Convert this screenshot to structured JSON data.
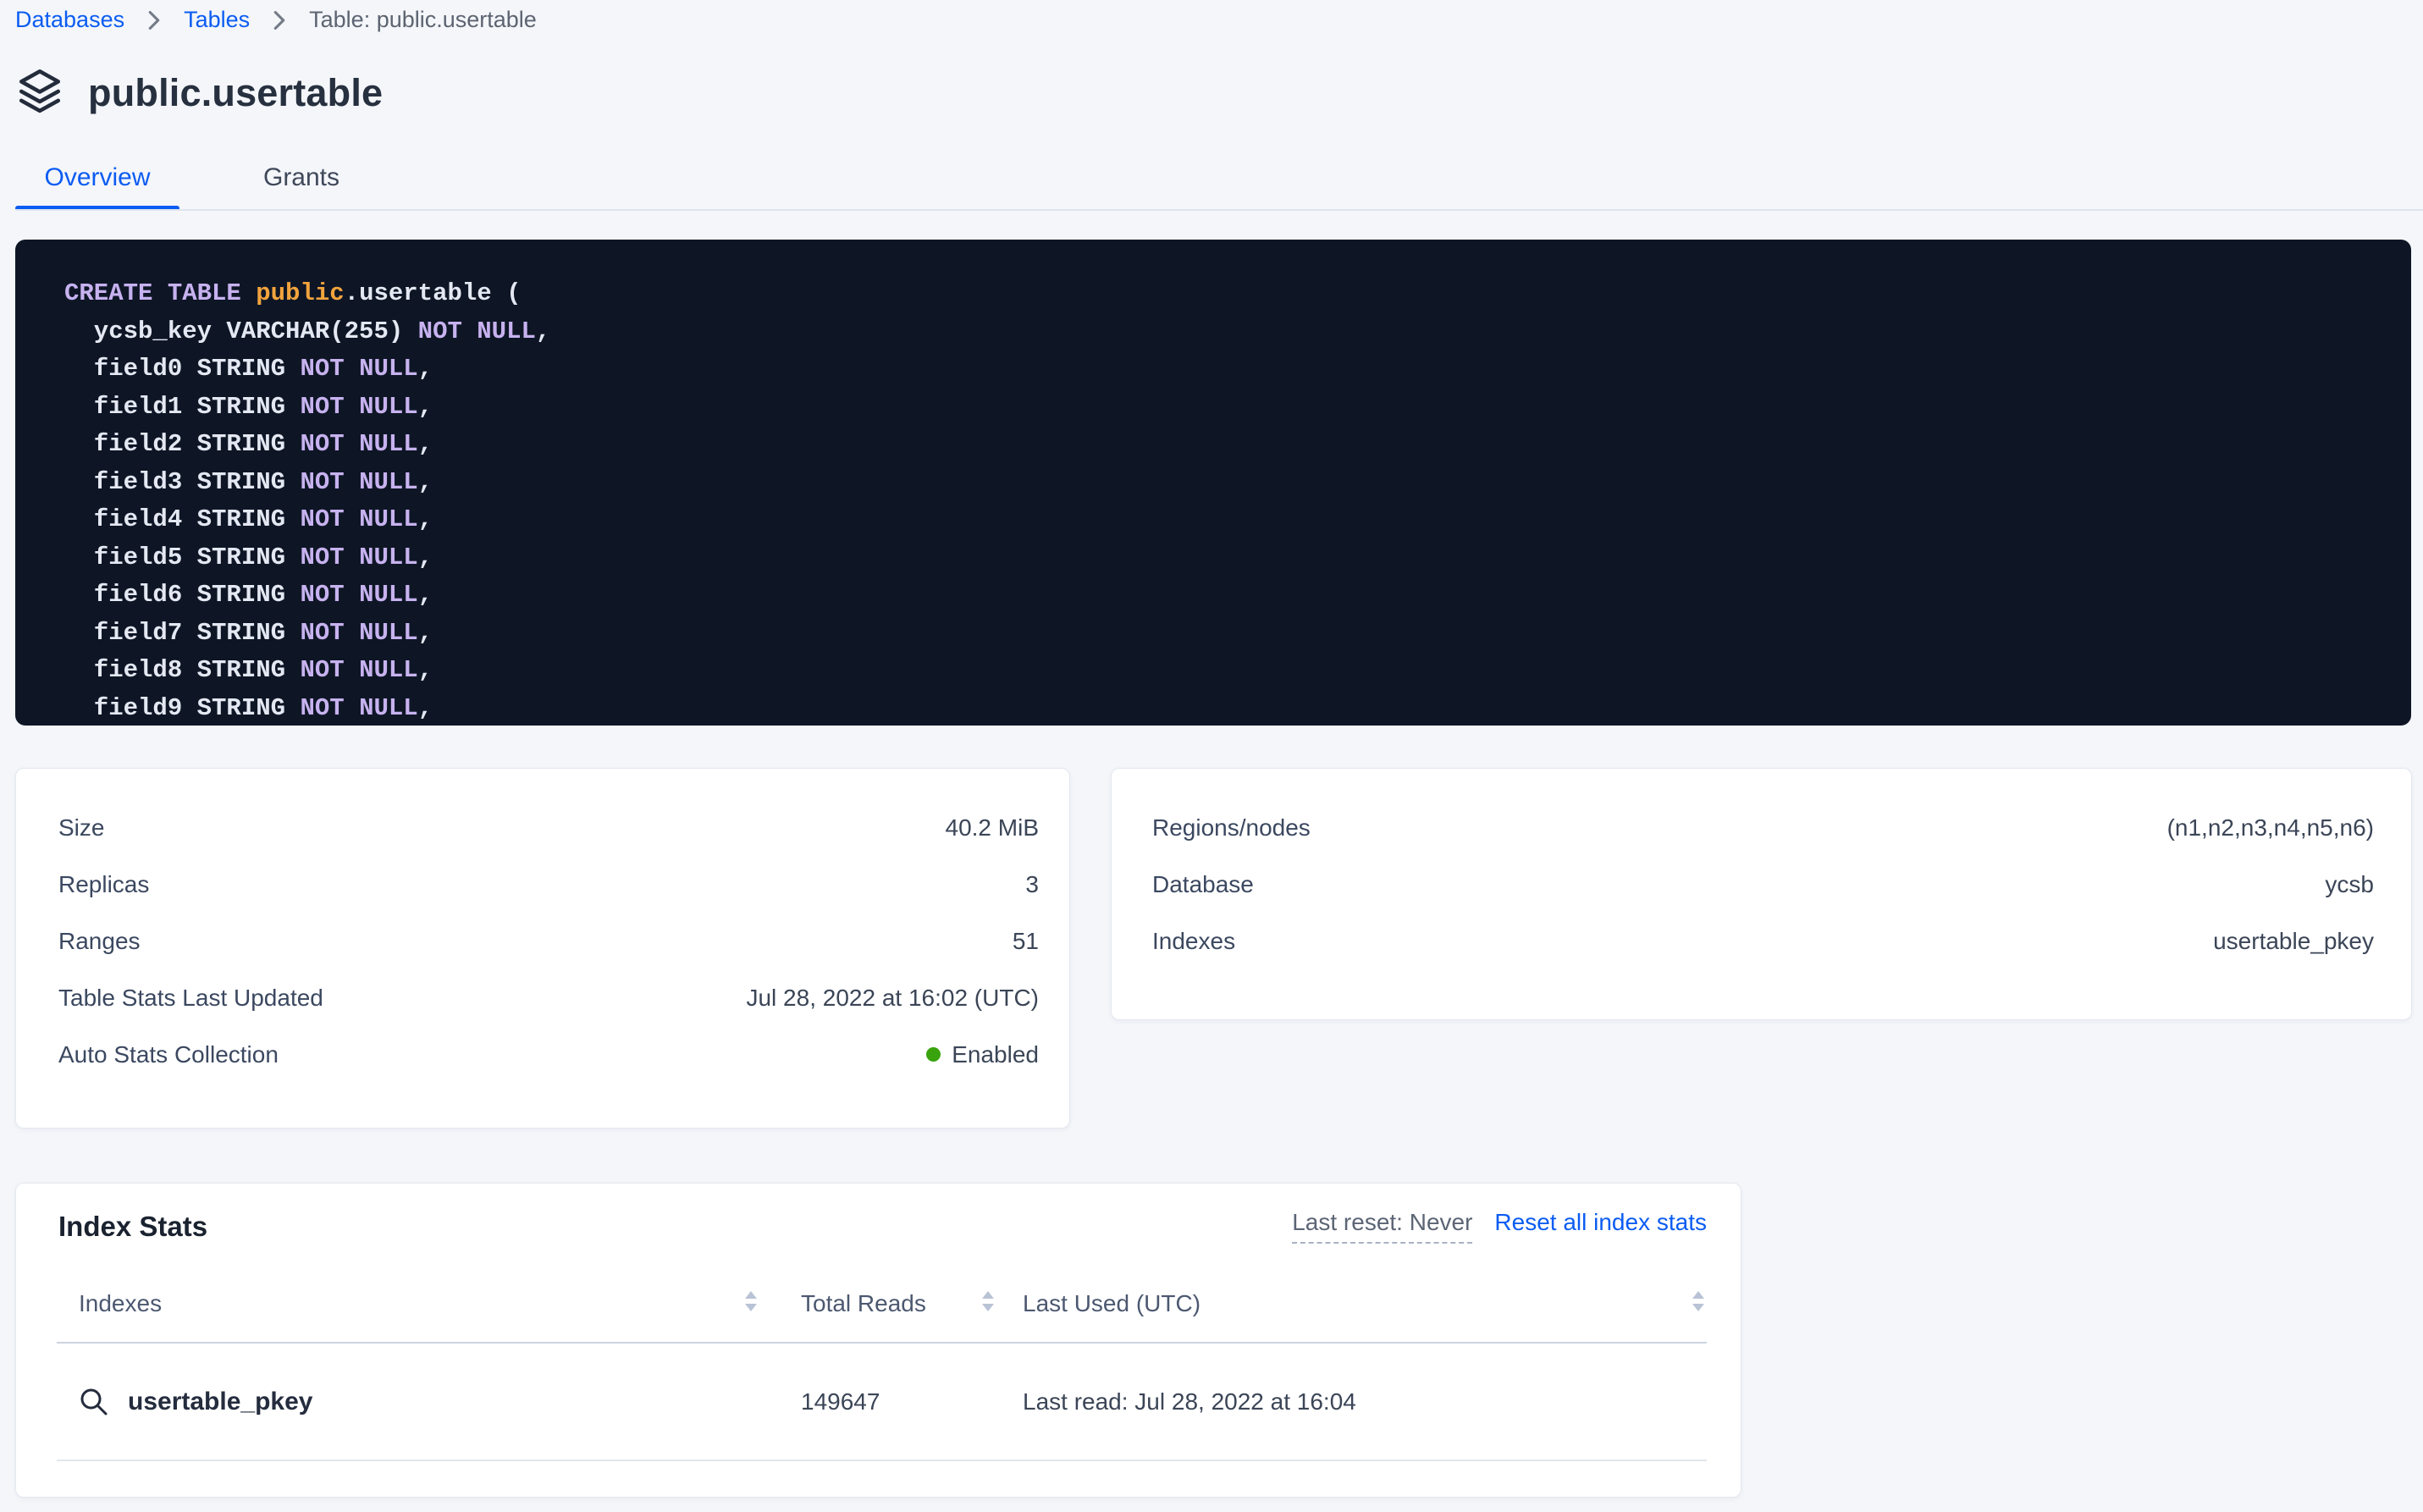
{
  "breadcrumb": {
    "items": [
      {
        "label": "Databases",
        "type": "link"
      },
      {
        "label": "Tables",
        "type": "link"
      },
      {
        "label": "Table: public.usertable",
        "type": "current"
      }
    ]
  },
  "header": {
    "title": "public.usertable",
    "icon": "stack-icon"
  },
  "tabs": [
    {
      "label": "Overview",
      "active": true
    },
    {
      "label": "Grants",
      "active": false
    }
  ],
  "sql": {
    "lines": [
      [
        {
          "t": "kw",
          "v": "CREATE TABLE "
        },
        {
          "t": "db",
          "v": "public"
        },
        {
          "t": "pl",
          "v": ".usertable ("
        }
      ],
      [
        {
          "t": "pl",
          "v": "  ycsb_key VARCHAR(255) "
        },
        {
          "t": "kw",
          "v": "NOT NULL"
        },
        {
          "t": "pl",
          "v": ","
        }
      ],
      [
        {
          "t": "pl",
          "v": "  field0 STRING "
        },
        {
          "t": "kw",
          "v": "NOT NULL"
        },
        {
          "t": "pl",
          "v": ","
        }
      ],
      [
        {
          "t": "pl",
          "v": "  field1 STRING "
        },
        {
          "t": "kw",
          "v": "NOT NULL"
        },
        {
          "t": "pl",
          "v": ","
        }
      ],
      [
        {
          "t": "pl",
          "v": "  field2 STRING "
        },
        {
          "t": "kw",
          "v": "NOT NULL"
        },
        {
          "t": "pl",
          "v": ","
        }
      ],
      [
        {
          "t": "pl",
          "v": "  field3 STRING "
        },
        {
          "t": "kw",
          "v": "NOT NULL"
        },
        {
          "t": "pl",
          "v": ","
        }
      ],
      [
        {
          "t": "pl",
          "v": "  field4 STRING "
        },
        {
          "t": "kw",
          "v": "NOT NULL"
        },
        {
          "t": "pl",
          "v": ","
        }
      ],
      [
        {
          "t": "pl",
          "v": "  field5 STRING "
        },
        {
          "t": "kw",
          "v": "NOT NULL"
        },
        {
          "t": "pl",
          "v": ","
        }
      ],
      [
        {
          "t": "pl",
          "v": "  field6 STRING "
        },
        {
          "t": "kw",
          "v": "NOT NULL"
        },
        {
          "t": "pl",
          "v": ","
        }
      ],
      [
        {
          "t": "pl",
          "v": "  field7 STRING "
        },
        {
          "t": "kw",
          "v": "NOT NULL"
        },
        {
          "t": "pl",
          "v": ","
        }
      ],
      [
        {
          "t": "pl",
          "v": "  field8 STRING "
        },
        {
          "t": "kw",
          "v": "NOT NULL"
        },
        {
          "t": "pl",
          "v": ","
        }
      ],
      [
        {
          "t": "pl",
          "v": "  field9 STRING "
        },
        {
          "t": "kw",
          "v": "NOT NULL"
        },
        {
          "t": "pl",
          "v": ","
        }
      ]
    ]
  },
  "details_left": {
    "rows": [
      {
        "label": "Size",
        "value": "40.2 MiB"
      },
      {
        "label": "Replicas",
        "value": "3"
      },
      {
        "label": "Ranges",
        "value": "51"
      },
      {
        "label": "Table Stats Last Updated",
        "value": "Jul 28, 2022 at 16:02 (UTC)"
      },
      {
        "label": "Auto Stats Collection",
        "value": "Enabled",
        "status": "enabled"
      }
    ]
  },
  "details_right": {
    "rows": [
      {
        "label": "Regions/nodes",
        "value": "(n1,n2,n3,n4,n5,n6)"
      },
      {
        "label": "Database",
        "value": "ycsb"
      },
      {
        "label": "Indexes",
        "value": "usertable_pkey"
      }
    ]
  },
  "index_stats": {
    "title": "Index Stats",
    "last_reset": "Last reset: Never",
    "reset_link": "Reset all index stats",
    "columns": [
      "Indexes",
      "Total Reads",
      "Last Used (UTC)"
    ],
    "rows": [
      {
        "index_name": "usertable_pkey",
        "total_reads": "149647",
        "last_used": "Last read: Jul 28, 2022 at 16:04"
      }
    ]
  },
  "colors": {
    "accent_blue": "#0b5cf2",
    "page_bg": "#f4f6fa",
    "code_bg": "#0e1626",
    "code_keyword": "#c7b2ef",
    "code_schema": "#f2a43d",
    "code_plain": "#e4e8f2",
    "status_green": "#38a30c"
  }
}
